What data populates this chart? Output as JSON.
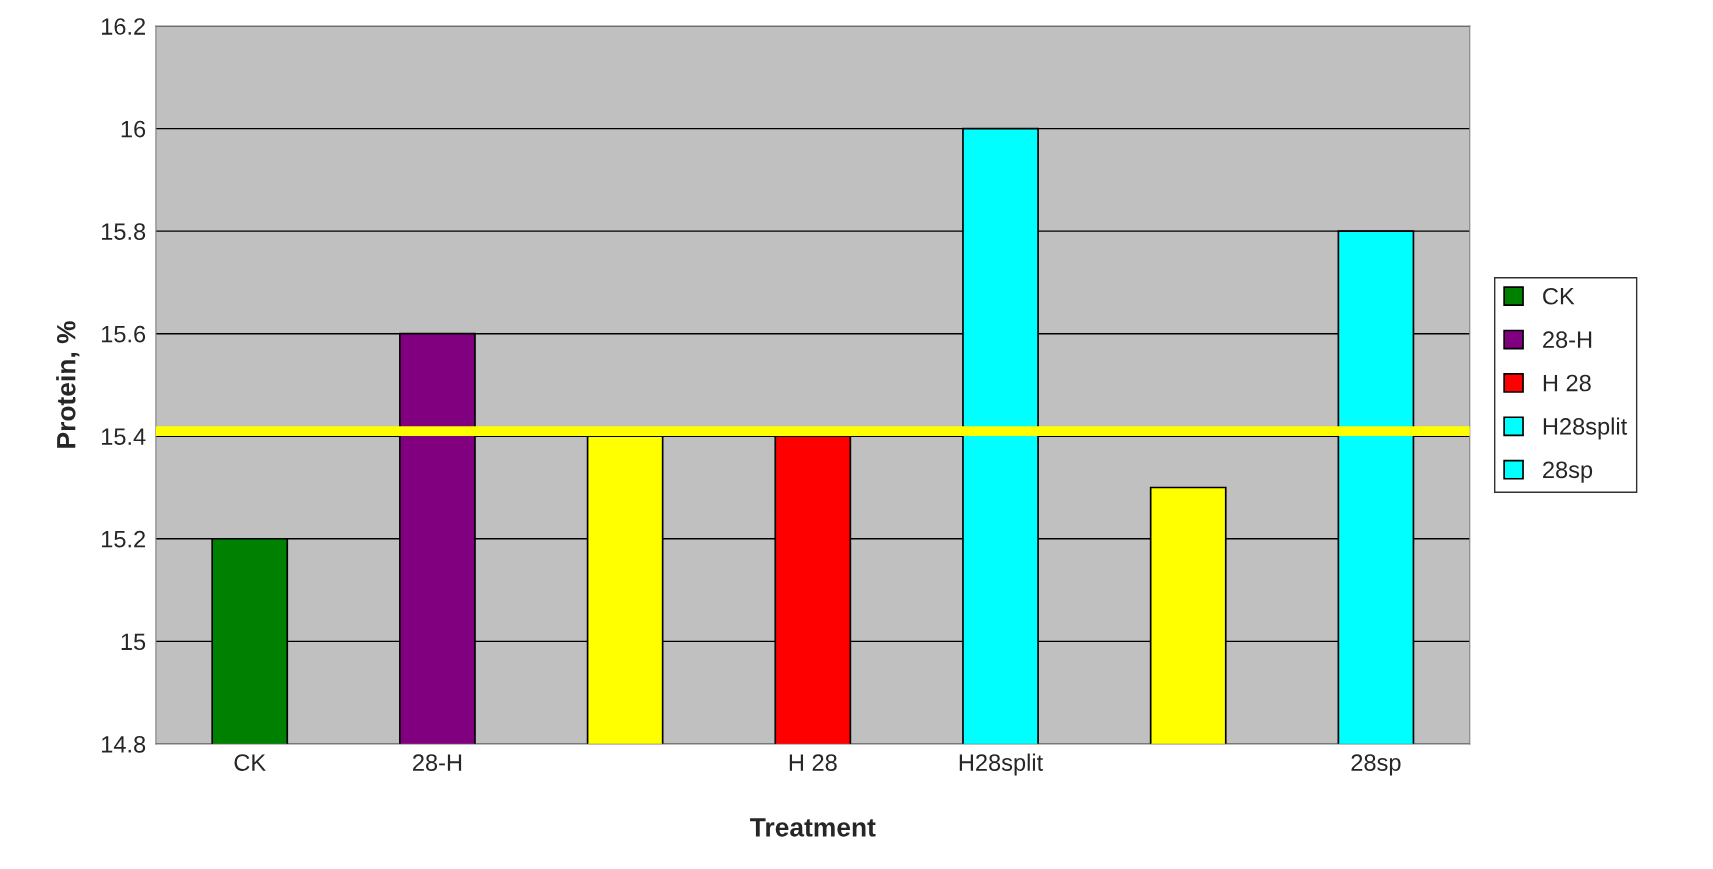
{
  "chart_data": {
    "type": "bar",
    "xlabel": "Treatment",
    "ylabel": "Protein, %",
    "categories": [
      "CK",
      "28-H",
      null,
      "H 28",
      "H28split",
      null,
      "28sp"
    ],
    "series": [
      {
        "name": "CK",
        "color": "#008000",
        "values": [
          15.2,
          null,
          null,
          null,
          null,
          null,
          null
        ]
      },
      {
        "name": "28-H",
        "color": "#800080",
        "values": [
          null,
          15.6,
          null,
          null,
          null,
          null,
          null
        ]
      },
      {
        "color": "#ffff00",
        "values": [
          null,
          null,
          15.4,
          null,
          null,
          null,
          null
        ]
      },
      {
        "name": "H 28",
        "color": "#ff0000",
        "values": [
          null,
          null,
          null,
          15.4,
          null,
          null,
          null
        ]
      },
      {
        "name": "H28split",
        "color": "#00ffff",
        "values": [
          null,
          null,
          null,
          null,
          16.0,
          null,
          null
        ]
      },
      {
        "color": "#ffff00",
        "values": [
          null,
          null,
          null,
          null,
          null,
          15.3,
          null
        ]
      },
      {
        "name": "28sp",
        "color": "#00ffff",
        "values": [
          null,
          null,
          null,
          null,
          null,
          null,
          15.8
        ]
      }
    ],
    "ylim": [
      14.8,
      16.2
    ],
    "yticks": [
      14.8,
      15,
      15.2,
      15.4,
      15.6,
      15.8,
      16,
      16.2
    ],
    "grid": "y",
    "legend": "right",
    "ref_lines": [
      {
        "axis": "y",
        "value": 15.41,
        "color": "#ffff00"
      }
    ]
  }
}
